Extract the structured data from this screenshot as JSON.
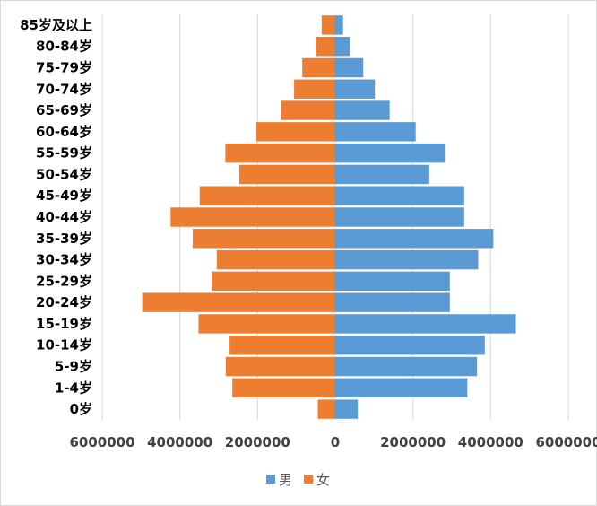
{
  "chart_data": {
    "type": "bar",
    "orientation": "horizontal",
    "layout": "population-pyramid",
    "categories": [
      "0岁",
      "1-4岁",
      "5-9岁",
      "10-14岁",
      "15-19岁",
      "20-24岁",
      "25-29岁",
      "30-34岁",
      "35-39岁",
      "40-44岁",
      "45-49岁",
      "50-54岁",
      "55-59岁",
      "60-64岁",
      "65-69岁",
      "70-74岁",
      "75-79岁",
      "80-84岁",
      "85岁及以上"
    ],
    "series": [
      {
        "name": "男",
        "color": "#5b9bd5",
        "side": "right",
        "values": [
          580000,
          3400000,
          3650000,
          3850000,
          4650000,
          2950000,
          2950000,
          3680000,
          4070000,
          3320000,
          3320000,
          2420000,
          2820000,
          2070000,
          1400000,
          1020000,
          720000,
          380000,
          200000
        ]
      },
      {
        "name": "女",
        "color": "#ed7d31",
        "side": "left",
        "values": [
          450000,
          2650000,
          2820000,
          2720000,
          3520000,
          4970000,
          3180000,
          3050000,
          3670000,
          4240000,
          3490000,
          2470000,
          2830000,
          2030000,
          1400000,
          1060000,
          850000,
          500000,
          350000
        ]
      }
    ],
    "xlim": [
      -6000000,
      6000000
    ],
    "xticks": [
      -6000000,
      -4000000,
      -2000000,
      0,
      2000000,
      4000000,
      6000000
    ],
    "xtick_labels": [
      "6000000",
      "4000000",
      "2000000",
      "0",
      "2000000",
      "4000000",
      "6000000"
    ],
    "grid": true,
    "legend_position": "bottom"
  }
}
